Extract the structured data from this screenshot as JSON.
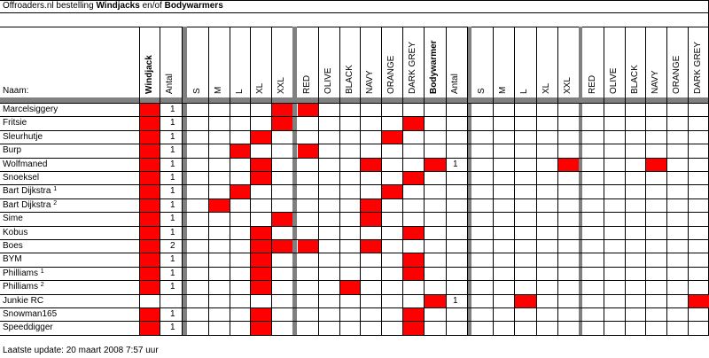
{
  "title": {
    "prefix": "Offroaders.nl bestelling ",
    "windjacks": "Windjacks",
    "middle": " en/of ",
    "bodywarmers": "Bodywarmers"
  },
  "header": {
    "name_label": "Naam:",
    "windjack": "Windjack",
    "aantal": "Antal",
    "bodywarmer": "Bodywarmer",
    "aantal2": "Antal",
    "sizes": [
      "S",
      "M",
      "L",
      "XL",
      "XXL"
    ],
    "colors": [
      "RED",
      "OLIVE",
      "BLACK",
      "NAVY",
      "ORANGE",
      "DARK GREY"
    ]
  },
  "colors": {
    "red": "#ff0000",
    "separator": "#808080",
    "grid": "#c0c0c0"
  },
  "rows": [
    {
      "name": "Marcelsiggery",
      "sup": "",
      "wj": true,
      "wj_qty": "1",
      "wj_size": "XXL",
      "wj_color": "RED",
      "bw": false,
      "bw_qty": "",
      "bw_size": "",
      "bw_color": ""
    },
    {
      "name": "Fritsie",
      "sup": "",
      "wj": true,
      "wj_qty": "1",
      "wj_size": "XXL",
      "wj_color": "DARK GREY",
      "bw": false,
      "bw_qty": "",
      "bw_size": "",
      "bw_color": ""
    },
    {
      "name": "Sleurhutje",
      "sup": "",
      "wj": true,
      "wj_qty": "1",
      "wj_size": "XL",
      "wj_color": "ORANGE",
      "bw": false,
      "bw_qty": "",
      "bw_size": "",
      "bw_color": ""
    },
    {
      "name": "Burp",
      "sup": "",
      "wj": true,
      "wj_qty": "1",
      "wj_size": "L",
      "wj_color": "RED",
      "bw": false,
      "bw_qty": "",
      "bw_size": "",
      "bw_color": ""
    },
    {
      "name": "Wolfmaned",
      "sup": "",
      "wj": true,
      "wj_qty": "1",
      "wj_size": "XL",
      "wj_color": "NAVY",
      "bw": true,
      "bw_qty": "1",
      "bw_size": "XXL",
      "bw_color": "NAVY"
    },
    {
      "name": "Snoeksel",
      "sup": "",
      "wj": true,
      "wj_qty": "1",
      "wj_size": "XL",
      "wj_color": "DARK GREY",
      "bw": false,
      "bw_qty": "",
      "bw_size": "",
      "bw_color": ""
    },
    {
      "name": "Bart Dijkstra ",
      "sup": "1",
      "wj": true,
      "wj_qty": "1",
      "wj_size": "L",
      "wj_color": "ORANGE",
      "bw": false,
      "bw_qty": "",
      "bw_size": "",
      "bw_color": ""
    },
    {
      "name": "Bart Dijkstra ",
      "sup": "2",
      "wj": true,
      "wj_qty": "1",
      "wj_size": "M",
      "wj_color": "NAVY",
      "bw": false,
      "bw_qty": "",
      "bw_size": "",
      "bw_color": ""
    },
    {
      "name": "Sime",
      "sup": "",
      "wj": true,
      "wj_qty": "1",
      "wj_size": "XXL",
      "wj_color": "NAVY",
      "bw": false,
      "bw_qty": "",
      "bw_size": "",
      "bw_color": ""
    },
    {
      "name": "Kobus",
      "sup": "",
      "wj": true,
      "wj_qty": "1",
      "wj_size": "XL",
      "wj_color": "DARK GREY",
      "bw": false,
      "bw_qty": "",
      "bw_size": "",
      "bw_color": ""
    },
    {
      "name": "Boes",
      "sup": "",
      "wj": true,
      "wj_qty": "2",
      "wj_size": "XL+XXL",
      "wj_color": "RED+NAVY",
      "bw": false,
      "bw_qty": "",
      "bw_size": "",
      "bw_color": ""
    },
    {
      "name": "BYM",
      "sup": "",
      "wj": true,
      "wj_qty": "1",
      "wj_size": "XL",
      "wj_color": "DARK GREY",
      "bw": false,
      "bw_qty": "",
      "bw_size": "",
      "bw_color": ""
    },
    {
      "name": "Philliams ",
      "sup": "1",
      "wj": true,
      "wj_qty": "1",
      "wj_size": "XL",
      "wj_color": "DARK GREY",
      "bw": false,
      "bw_qty": "",
      "bw_size": "",
      "bw_color": ""
    },
    {
      "name": "Philliams ",
      "sup": "2",
      "wj": true,
      "wj_qty": "1",
      "wj_size": "XL",
      "wj_color": "BLACK",
      "bw": false,
      "bw_qty": "",
      "bw_size": "",
      "bw_color": ""
    },
    {
      "name": "Junkie RC",
      "sup": "",
      "wj": false,
      "wj_qty": "",
      "wj_size": "",
      "wj_color": "",
      "bw": true,
      "bw_qty": "1",
      "bw_size": "L",
      "bw_color": "DARK GREY"
    },
    {
      "name": "Snowman165",
      "sup": "",
      "wj": true,
      "wj_qty": "1",
      "wj_size": "XL",
      "wj_color": "DARK GREY",
      "bw": false,
      "bw_qty": "",
      "bw_size": "",
      "bw_color": ""
    },
    {
      "name": "Speeddigger",
      "sup": "",
      "wj": true,
      "wj_qty": "1",
      "wj_size": "XL",
      "wj_color": "DARK GREY",
      "bw": false,
      "bw_qty": "",
      "bw_size": "",
      "bw_color": ""
    }
  ],
  "footer": "Laatste update: 20 maart 2008 7:57 uur"
}
